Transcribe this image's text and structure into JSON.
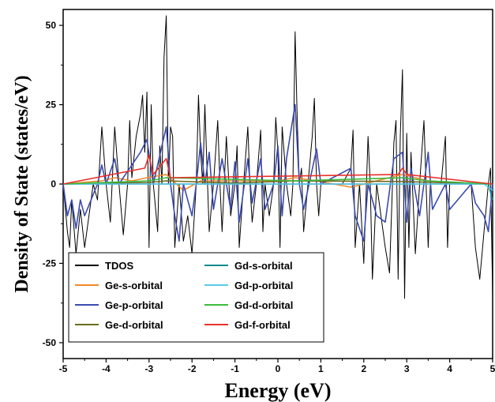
{
  "chart_data": {
    "type": "line",
    "xlabel": "Energy (eV)",
    "ylabel": "Density of State (states/eV)",
    "xlim": [
      -5,
      5
    ],
    "ylim": [
      -55,
      55
    ],
    "xticks": [
      "-5",
      "-4",
      "-3",
      "-2",
      "-1",
      "0",
      "1",
      "2",
      "3",
      "4",
      "5"
    ],
    "yticks": [
      "50",
      "25",
      "0",
      "-25",
      "-50"
    ],
    "legend_position": "bottom-left",
    "series": [
      {
        "name": "TDOS",
        "color": "#000000",
        "x": [
          -5.0,
          -4.9,
          -4.85,
          -4.8,
          -4.7,
          -4.6,
          -4.5,
          -4.3,
          -4.2,
          -4.1,
          -4.0,
          -3.9,
          -3.8,
          -3.7,
          -3.6,
          -3.5,
          -3.45,
          -3.4,
          -3.3,
          -3.2,
          -3.15,
          -3.1,
          -3.05,
          -3.0,
          -2.95,
          -2.9,
          -2.8,
          -2.75,
          -2.7,
          -2.65,
          -2.6,
          -2.55,
          -2.5,
          -2.45,
          -2.4,
          -2.3,
          -2.2,
          -2.1,
          -2.0,
          -1.9,
          -1.85,
          -1.8,
          -1.75,
          -1.7,
          -1.65,
          -1.6,
          -1.5,
          -1.4,
          -1.35,
          -1.3,
          -1.2,
          -1.1,
          -1.0,
          -0.95,
          -0.9,
          -0.8,
          -0.7,
          -0.65,
          -0.6,
          -0.5,
          -0.4,
          -0.35,
          -0.3,
          -0.2,
          -0.1,
          -0.05,
          0.0,
          0.05,
          0.1,
          0.2,
          0.3,
          0.35,
          0.4,
          0.45,
          0.5,
          0.55,
          0.6,
          0.7,
          0.8,
          0.85,
          0.9,
          0.95,
          1.0,
          1.2,
          1.5,
          1.7,
          1.75,
          1.8,
          1.9,
          2.0,
          2.1,
          2.15,
          2.2,
          2.3,
          2.5,
          2.6,
          2.7,
          2.75,
          2.8,
          2.85,
          2.9,
          2.95,
          3.0,
          3.05,
          3.1,
          3.2,
          3.3,
          3.4,
          3.45,
          3.5,
          3.55,
          3.6,
          3.8,
          3.9,
          3.95,
          4.0,
          4.1,
          4.5,
          4.6,
          4.7,
          4.8,
          4.9,
          4.95,
          5.0
        ],
        "y": [
          0,
          -15,
          -20,
          -5,
          -22,
          -8,
          -20,
          0,
          -5,
          18,
          0,
          -12,
          18,
          0,
          -16,
          0,
          20,
          2,
          15,
          22,
          28,
          10,
          29,
          -20,
          25,
          0,
          -15,
          12,
          0,
          40,
          53,
          0,
          18,
          15,
          -20,
          0,
          -18,
          -10,
          -22,
          0,
          28,
          10,
          0,
          25,
          5,
          -15,
          0,
          20,
          0,
          -15,
          15,
          -10,
          0,
          12,
          -20,
          0,
          18,
          0,
          -12,
          0,
          17,
          -15,
          0,
          -10,
          0,
          21,
          10,
          -20,
          18,
          0,
          -10,
          0,
          48,
          20,
          0,
          5,
          -15,
          0,
          15,
          27,
          0,
          -10,
          0,
          0,
          0,
          5,
          17,
          -20,
          0,
          -25,
          15,
          0,
          -30,
          0,
          -20,
          -28,
          13,
          20,
          -30,
          15,
          36,
          -36,
          16,
          -20,
          10,
          -22,
          0,
          20,
          0,
          -20,
          0,
          0,
          0,
          15,
          -20,
          0,
          0,
          0,
          -20,
          -30,
          -15,
          0,
          5,
          -35
        ]
      },
      {
        "name": "Ge-s-orbital",
        "color": "#f28a2b",
        "x": [
          -5.0,
          -4.1,
          -3.8,
          -3.4,
          -3.05,
          -2.6,
          -2.2,
          -1.8,
          -1.0,
          0.0,
          0.4,
          0.9,
          1.7,
          2.9,
          3.5,
          4.6,
          5.0
        ],
        "y": [
          0,
          1,
          2,
          1,
          2,
          3,
          -2,
          1,
          1,
          1,
          2,
          1,
          -1,
          3,
          1,
          0,
          0
        ]
      },
      {
        "name": "Ge-p-orbital",
        "color": "#3b4bb0",
        "x": [
          -5.0,
          -4.9,
          -4.8,
          -4.7,
          -4.6,
          -4.5,
          -4.2,
          -4.1,
          -4.0,
          -3.8,
          -3.7,
          -3.4,
          -3.2,
          -3.05,
          -2.9,
          -2.7,
          -2.6,
          -2.5,
          -2.4,
          -2.3,
          -2.2,
          -2.0,
          -1.9,
          -1.8,
          -1.7,
          -1.6,
          -1.5,
          -1.4,
          -1.3,
          -1.1,
          -1.0,
          -0.9,
          -0.7,
          -0.6,
          -0.4,
          -0.3,
          -0.1,
          0.0,
          0.1,
          0.2,
          0.4,
          0.5,
          0.6,
          0.9,
          1.0,
          1.7,
          1.8,
          2.0,
          2.1,
          2.3,
          2.5,
          2.7,
          2.9,
          3.0,
          3.1,
          3.3,
          3.5,
          3.6,
          3.9,
          4.0,
          4.5,
          4.6,
          4.8,
          4.9,
          5.0
        ],
        "y": [
          0,
          -10,
          -5,
          -14,
          -5,
          -10,
          0,
          6,
          0,
          8,
          0,
          6,
          10,
          14,
          0,
          12,
          18,
          0,
          -10,
          -18,
          0,
          -10,
          0,
          13,
          0,
          10,
          -8,
          0,
          8,
          -8,
          7,
          -12,
          8,
          -6,
          8,
          -8,
          0,
          12,
          -10,
          8,
          25,
          0,
          -8,
          11,
          0,
          5,
          -10,
          -18,
          0,
          -10,
          -12,
          8,
          10,
          -12,
          5,
          -10,
          10,
          -8,
          0,
          -8,
          0,
          -6,
          -10,
          -15,
          0
        ]
      },
      {
        "name": "Ge-d-orbital",
        "color": "#6b6b1e",
        "x": [
          -5.0,
          -3.0,
          -2.6,
          -1.0,
          0.4,
          2.9,
          5.0
        ],
        "y": [
          0,
          0.5,
          1,
          0.3,
          1,
          0.8,
          0
        ]
      },
      {
        "name": "Gd-s-orbital",
        "color": "#0a8b8b",
        "x": [
          -5.0,
          4.9,
          5.0
        ],
        "y": [
          0,
          0,
          -5
        ]
      },
      {
        "name": "Gd-p-orbital",
        "color": "#5bc8e8",
        "x": [
          -5.0,
          4.8,
          5.0
        ],
        "y": [
          0,
          0,
          -2
        ]
      },
      {
        "name": "Gd-d-orbital",
        "color": "#3cbb3c",
        "x": [
          -5.0,
          -3.0,
          -2.6,
          0.4,
          2.9,
          3.5,
          5.0
        ],
        "y": [
          0,
          1,
          2,
          1,
          2,
          1,
          0
        ]
      },
      {
        "name": "Gd-f-orbital",
        "color": "#e8322b",
        "x": [
          -5.0,
          -3.1,
          -3.0,
          -2.9,
          -2.6,
          -2.5,
          2.8,
          2.9,
          3.0,
          5.0
        ],
        "y": [
          0,
          5,
          9,
          3,
          8,
          2,
          3,
          5,
          3,
          0
        ]
      }
    ]
  }
}
